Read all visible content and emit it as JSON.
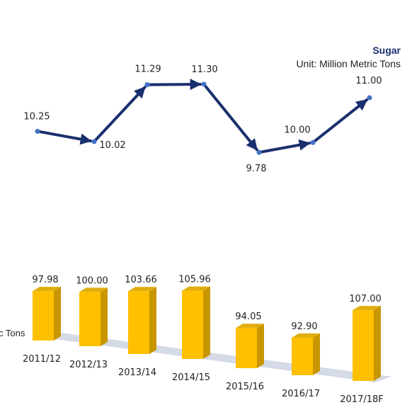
{
  "chart_data": {
    "type": "bar",
    "title": "Sugar",
    "subtitle": "Unit: Million Metric Tons",
    "side_label": "c Tons",
    "categories": [
      "2011/12",
      "2012/13",
      "2013/14",
      "2014/15",
      "2015/16",
      "2016/17",
      "2017/18F"
    ],
    "series": [
      {
        "type": "bar",
        "values": [
          97.98,
          100.0,
          103.66,
          105.96,
          94.05,
          92.9,
          107.0
        ]
      },
      {
        "type": "line",
        "values": [
          10.25,
          10.02,
          11.29,
          11.3,
          9.78,
          10.0,
          11.0
        ]
      }
    ],
    "bar_value_labels": [
      "97.98",
      "100.00",
      "103.66",
      "105.96",
      "94.05",
      "92.90",
      "107.00"
    ],
    "line_value_labels": [
      "10.25",
      "10.02",
      "11.29",
      "11.30",
      "9.78",
      "10.00",
      "11.00"
    ],
    "colors": {
      "bar_front": "#FFC000",
      "bar_side": "#C89600",
      "bar_top": "#E0AE10",
      "line": "#1a2f6e",
      "marker": "#4472C4",
      "floor": "#D4DAE6"
    }
  }
}
